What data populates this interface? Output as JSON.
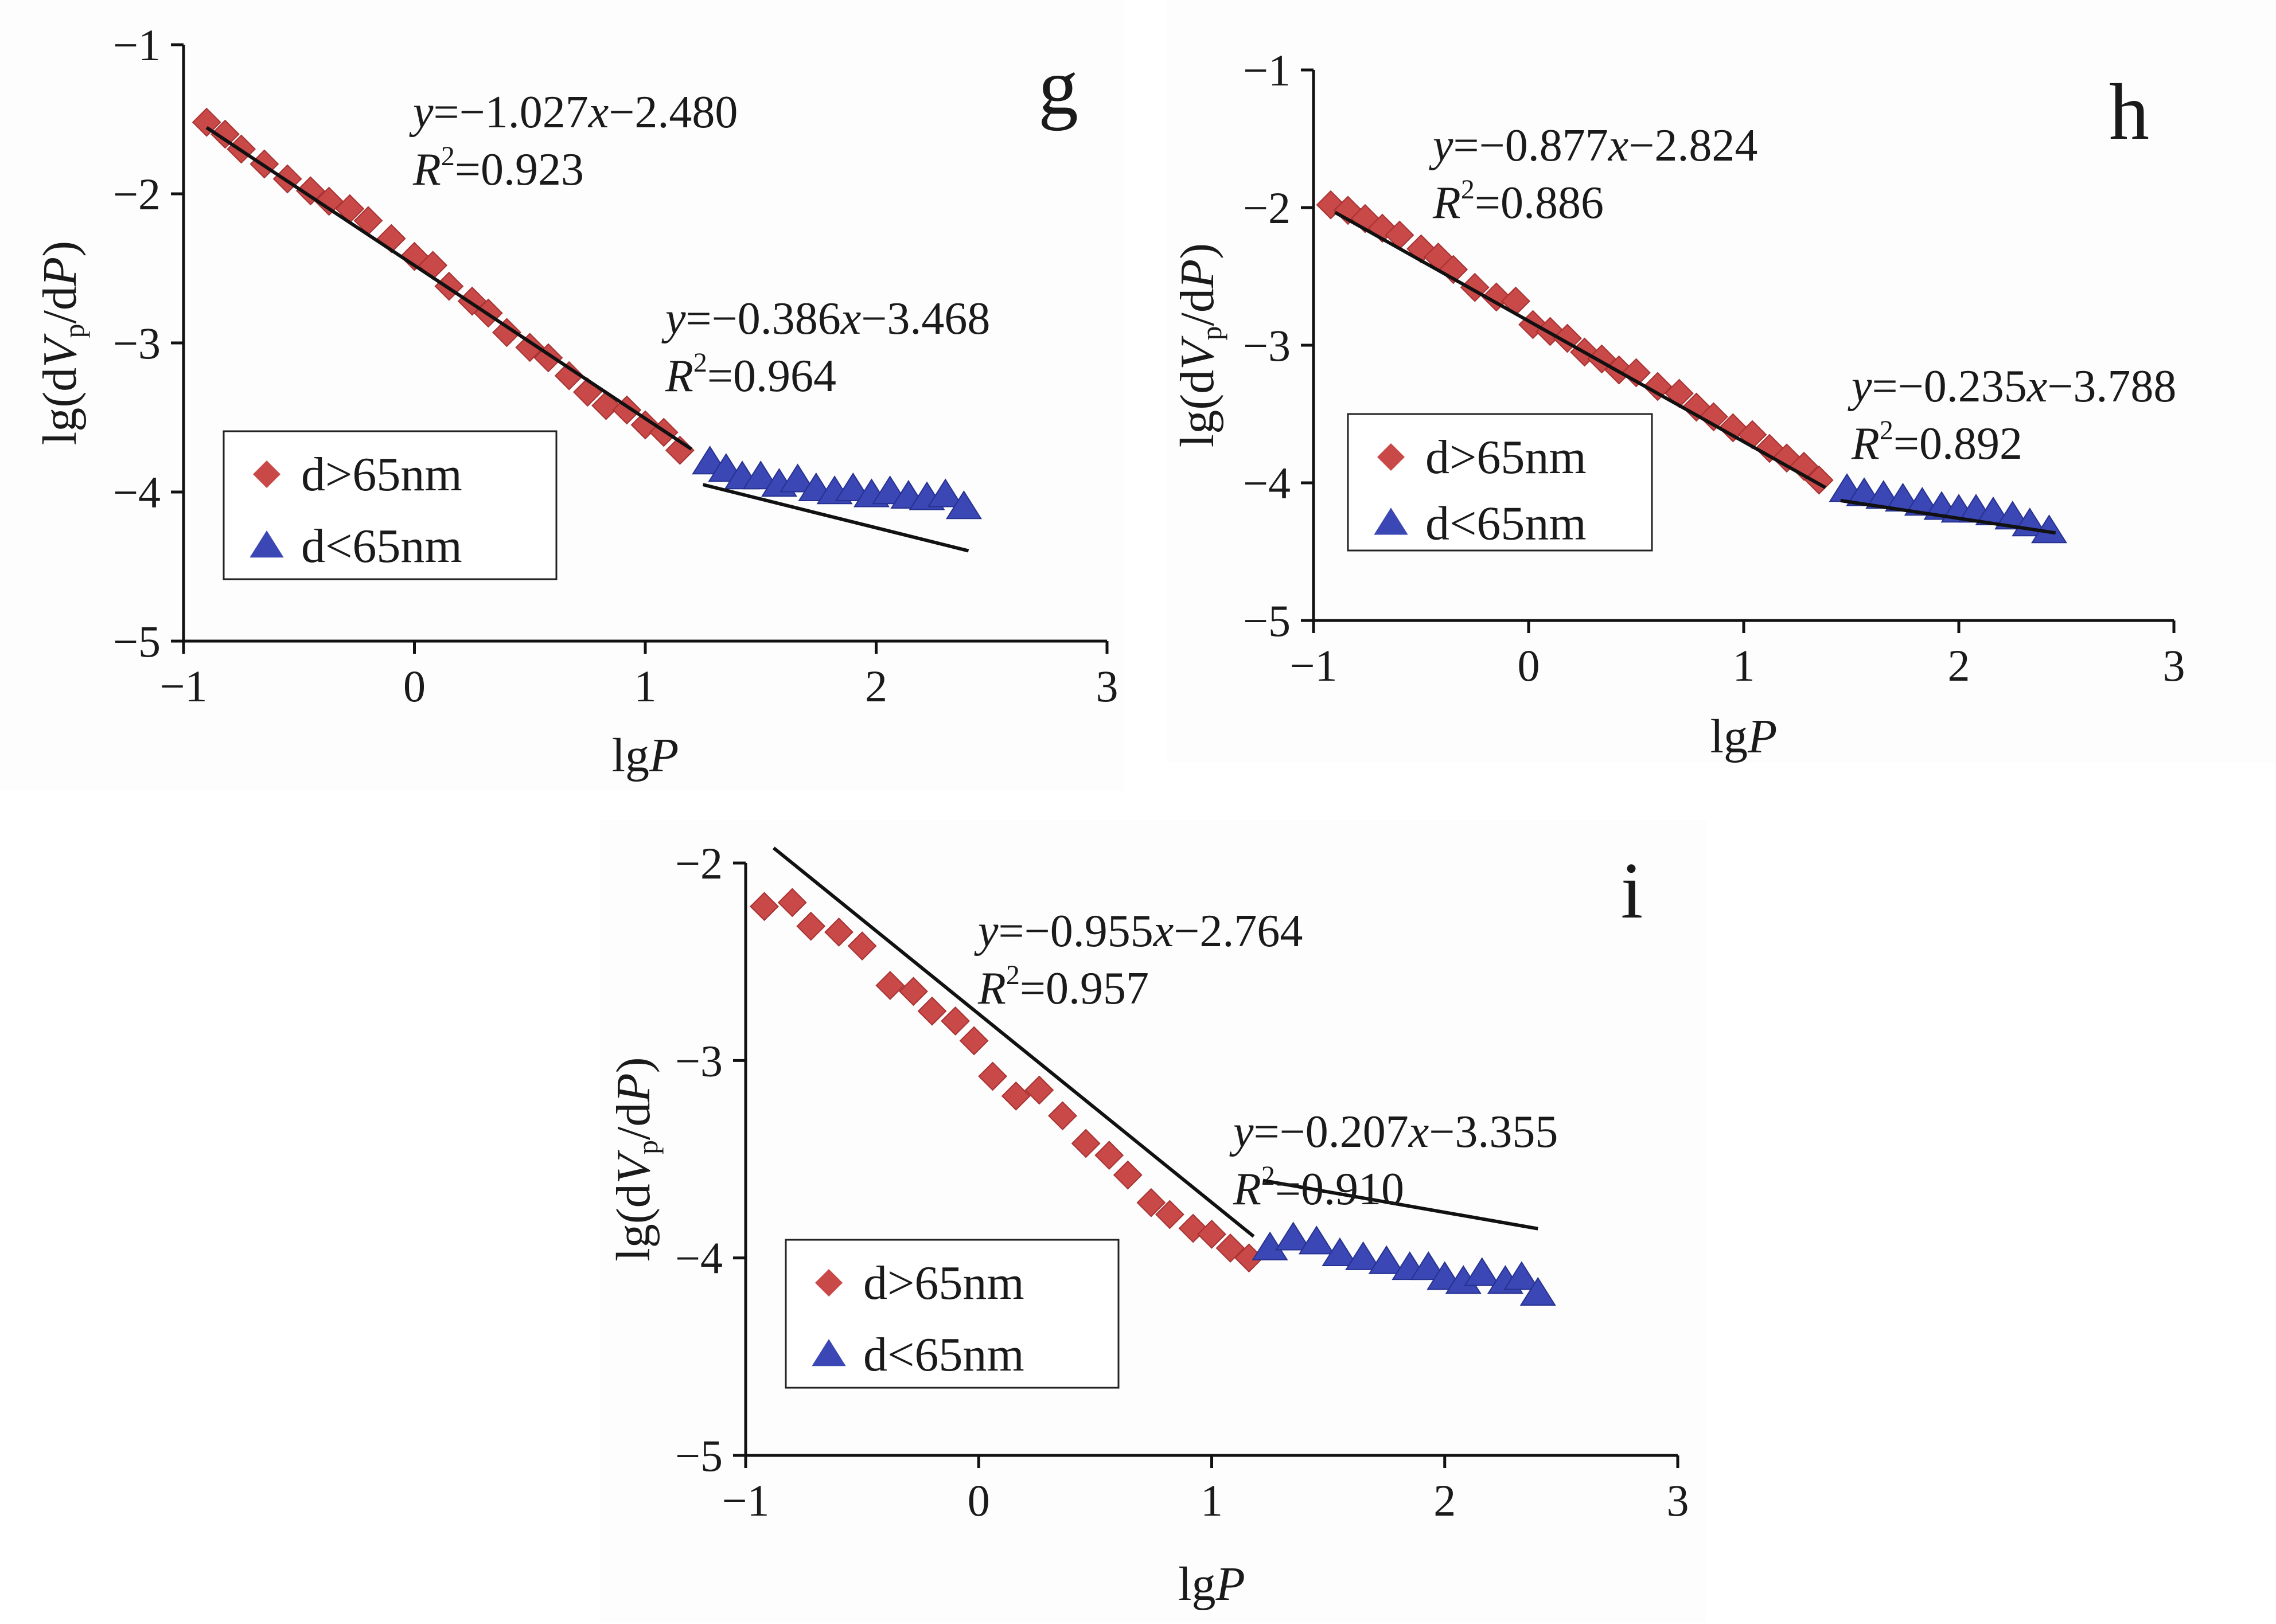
{
  "figure": {
    "description_free": true,
    "colors": {
      "series_large": "#c94848",
      "series_small": "#3a47b5",
      "fit_line": "#111111",
      "axis": "#111111",
      "panel_bg": "#ffffff"
    },
    "markers": {
      "series_large": "diamond",
      "series_small": "triangle"
    }
  },
  "chart_data": [
    {
      "panel": "g",
      "type": "scatter",
      "xlabel_main": "lg",
      "xlabel_italic": "P",
      "ylabel_prefix": "lg(d",
      "ylabel_V": "V",
      "ylabel_sub": "p",
      "ylabel_mid": "/d",
      "ylabel_P": "P",
      "ylabel_suffix": ")",
      "xlim": [
        -1,
        3
      ],
      "ylim": [
        -5,
        -1
      ],
      "xticks": [
        -1,
        0,
        1,
        2,
        3
      ],
      "yticks": [
        -1,
        -2,
        -3,
        -4,
        -5
      ],
      "xtick_labels": [
        "−1",
        "0",
        "1",
        "2",
        "3"
      ],
      "ytick_labels": [
        "−1",
        "−2",
        "−3",
        "−4",
        "−5"
      ],
      "legend": {
        "position": "lower-left",
        "items": [
          "d>65nm",
          "d<65nm"
        ]
      },
      "fits": [
        {
          "series": "d>65nm",
          "slope": -1.027,
          "intercept": -2.48,
          "x_range": [
            -0.9,
            1.2
          ],
          "eq_y": "y",
          "eq_rest": "=−1.027",
          "eq_x": "x",
          "eq_tail": "−2.480",
          "r2_R": "R",
          "r2_sup": "2",
          "r2_val": "=0.923"
        },
        {
          "series": "d<65nm",
          "slope": -0.386,
          "intercept": -3.468,
          "x_range": [
            1.25,
            2.4
          ],
          "eq_y": "y",
          "eq_rest": "=−0.386",
          "eq_x": "x",
          "eq_tail": "−3.468",
          "r2_R": "R",
          "r2_sup": "2",
          "r2_val": "=0.964"
        }
      ],
      "series": [
        {
          "name": "d>65nm",
          "x": [
            -0.9,
            -0.82,
            -0.75,
            -0.65,
            -0.55,
            -0.45,
            -0.37,
            -0.28,
            -0.2,
            -0.1,
            0.0,
            0.08,
            0.15,
            0.25,
            0.32,
            0.4,
            0.5,
            0.58,
            0.67,
            0.75,
            0.83,
            0.92,
            1.0,
            1.08,
            1.15
          ],
          "y": [
            -1.52,
            -1.6,
            -1.7,
            -1.8,
            -1.9,
            -1.98,
            -2.05,
            -2.1,
            -2.18,
            -2.3,
            -2.42,
            -2.48,
            -2.62,
            -2.72,
            -2.8,
            -2.93,
            -3.03,
            -3.1,
            -3.22,
            -3.33,
            -3.42,
            -3.45,
            -3.55,
            -3.6,
            -3.72
          ]
        },
        {
          "name": "d<65nm",
          "x": [
            1.28,
            1.35,
            1.42,
            1.5,
            1.58,
            1.66,
            1.74,
            1.82,
            1.9,
            1.98,
            2.06,
            2.14,
            2.22,
            2.3,
            2.38
          ],
          "y": [
            -3.8,
            -3.85,
            -3.9,
            -3.9,
            -3.95,
            -3.92,
            -3.98,
            -4.0,
            -3.98,
            -4.02,
            -4.0,
            -4.03,
            -4.04,
            -4.02,
            -4.1
          ]
        }
      ]
    },
    {
      "panel": "h",
      "type": "scatter",
      "xlabel_main": "lg",
      "xlabel_italic": "P",
      "ylabel_prefix": "lg(d",
      "ylabel_V": "V",
      "ylabel_sub": "p",
      "ylabel_mid": "/d",
      "ylabel_P": "P",
      "ylabel_suffix": ")",
      "xlim": [
        -1,
        3
      ],
      "ylim": [
        -5,
        -1
      ],
      "xticks": [
        -1,
        0,
        1,
        2,
        3
      ],
      "yticks": [
        -1,
        -2,
        -3,
        -4,
        -5
      ],
      "xtick_labels": [
        "−1",
        "0",
        "1",
        "2",
        "3"
      ],
      "ytick_labels": [
        "−1",
        "−2",
        "−3",
        "−4",
        "−5"
      ],
      "legend": {
        "position": "lower-left",
        "items": [
          "d>65nm",
          "d<65nm"
        ]
      },
      "fits": [
        {
          "series": "d>65nm",
          "slope": -0.877,
          "intercept": -2.824,
          "x_range": [
            -0.9,
            1.38
          ],
          "eq_y": "y",
          "eq_rest": "=−0.877",
          "eq_x": "x",
          "eq_tail": "−2.824",
          "r2_R": "R",
          "r2_sup": "2",
          "r2_val": "=0.886"
        },
        {
          "series": "d<65nm",
          "slope": -0.235,
          "intercept": -3.788,
          "x_range": [
            1.45,
            2.45
          ],
          "eq_y": "y",
          "eq_rest": "=−0.235",
          "eq_x": "x",
          "eq_tail": "−3.788",
          "r2_R": "R",
          "r2_sup": "2",
          "r2_val": "=0.892"
        }
      ],
      "series": [
        {
          "name": "d>65nm",
          "x": [
            -0.92,
            -0.84,
            -0.76,
            -0.68,
            -0.6,
            -0.5,
            -0.42,
            -0.35,
            -0.25,
            -0.15,
            -0.06,
            0.02,
            0.1,
            0.18,
            0.26,
            0.34,
            0.42,
            0.5,
            0.6,
            0.7,
            0.78,
            0.86,
            0.95,
            1.04,
            1.12,
            1.2,
            1.28,
            1.35
          ],
          "y": [
            -1.98,
            -2.02,
            -2.08,
            -2.15,
            -2.2,
            -2.3,
            -2.36,
            -2.45,
            -2.58,
            -2.65,
            -2.68,
            -2.85,
            -2.9,
            -2.95,
            -3.05,
            -3.1,
            -3.18,
            -3.2,
            -3.3,
            -3.35,
            -3.45,
            -3.52,
            -3.6,
            -3.65,
            -3.75,
            -3.82,
            -3.88,
            -3.98
          ]
        },
        {
          "name": "d<65nm",
          "x": [
            1.48,
            1.56,
            1.65,
            1.74,
            1.83,
            1.92,
            2.0,
            2.08,
            2.16,
            2.25,
            2.33,
            2.42
          ],
          "y": [
            -4.05,
            -4.08,
            -4.1,
            -4.12,
            -4.15,
            -4.18,
            -4.2,
            -4.2,
            -4.22,
            -4.25,
            -4.3,
            -4.35
          ]
        }
      ]
    },
    {
      "panel": "i",
      "type": "scatter",
      "xlabel_main": "lg",
      "xlabel_italic": "P",
      "ylabel_prefix": "lg(d",
      "ylabel_V": "V",
      "ylabel_sub": "p",
      "ylabel_mid": "/d",
      "ylabel_P": "P",
      "ylabel_suffix": ")",
      "xlim": [
        -1,
        3
      ],
      "ylim": [
        -5,
        -2
      ],
      "xticks": [
        -1,
        0,
        1,
        2,
        3
      ],
      "yticks": [
        -2,
        -3,
        -4,
        -5
      ],
      "xtick_labels": [
        "−1",
        "0",
        "1",
        "2",
        "3"
      ],
      "ytick_labels": [
        "−2",
        "−3",
        "−4",
        "−5"
      ],
      "legend": {
        "position": "lower-left",
        "items": [
          "d>65nm",
          "d<65nm"
        ]
      },
      "fits": [
        {
          "series": "d>65nm",
          "slope": -0.955,
          "intercept": -2.764,
          "x_range": [
            -0.88,
            1.18
          ],
          "eq_y": "y",
          "eq_rest": "=−0.955",
          "eq_x": "x",
          "eq_tail": "−2.764",
          "r2_R": "R",
          "r2_sup": "2",
          "r2_val": "=0.957"
        },
        {
          "series": "d<65nm",
          "slope": -0.207,
          "intercept": -3.355,
          "x_range": [
            1.22,
            2.4
          ],
          "eq_y": "y",
          "eq_rest": "=−0.207",
          "eq_x": "x",
          "eq_tail": "−3.355",
          "r2_R": "R",
          "r2_sup": "2",
          "r2_val": "=0.910"
        }
      ],
      "series": [
        {
          "name": "d>65nm",
          "x": [
            -0.92,
            -0.8,
            -0.72,
            -0.6,
            -0.5,
            -0.38,
            -0.28,
            -0.2,
            -0.1,
            -0.02,
            0.06,
            0.16,
            0.26,
            0.36,
            0.46,
            0.56,
            0.64,
            0.74,
            0.82,
            0.92,
            1.0,
            1.08,
            1.16
          ],
          "y": [
            -2.22,
            -2.2,
            -2.32,
            -2.35,
            -2.42,
            -2.62,
            -2.65,
            -2.75,
            -2.8,
            -2.9,
            -3.08,
            -3.18,
            -3.15,
            -3.28,
            -3.42,
            -3.48,
            -3.58,
            -3.72,
            -3.78,
            -3.85,
            -3.88,
            -3.95,
            -4.0
          ]
        },
        {
          "name": "d<65nm",
          "x": [
            1.25,
            1.35,
            1.45,
            1.55,
            1.65,
            1.75,
            1.85,
            1.93,
            2.0,
            2.08,
            2.16,
            2.26,
            2.33,
            2.4
          ],
          "y": [
            -3.95,
            -3.9,
            -3.92,
            -3.98,
            -4.0,
            -4.02,
            -4.05,
            -4.05,
            -4.1,
            -4.12,
            -4.08,
            -4.12,
            -4.1,
            -4.18
          ]
        }
      ]
    }
  ]
}
